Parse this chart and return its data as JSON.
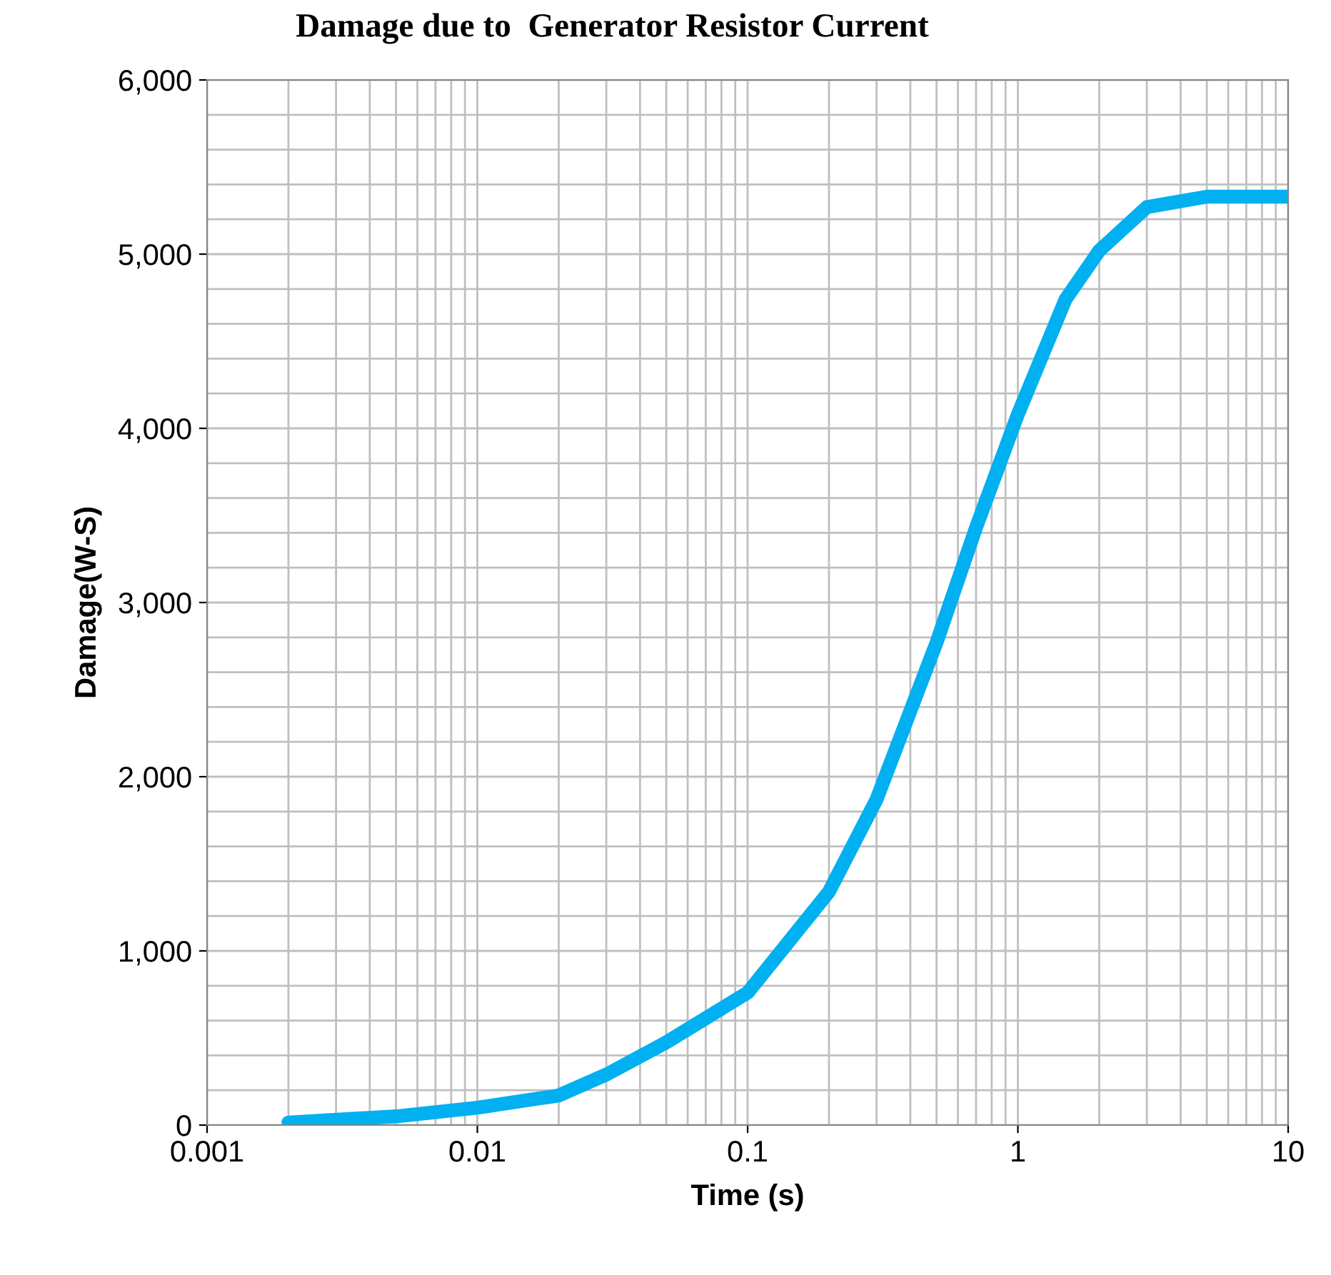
{
  "chart_data": {
    "type": "line",
    "title": "Damage due to  Generator Resistor Current",
    "xlabel": "Time (s)",
    "ylabel": "Damage(W-S)",
    "log": "x",
    "grid": true,
    "marker": "none",
    "line_style": "solid",
    "xlim": [
      0.001,
      10
    ],
    "xticks": [
      0.001,
      0.01,
      0.1,
      1,
      10
    ],
    "ylim": [
      0,
      6000
    ],
    "yticks": [
      0,
      {
        "value": 1000,
        "label": "1,000"
      },
      {
        "value": 2000,
        "label": "2,000"
      },
      {
        "value": 3000,
        "label": "3,000"
      },
      {
        "value": 4000,
        "label": "4,000"
      },
      {
        "value": 5000,
        "label": "5,000"
      },
      {
        "value": 6000,
        "label": "6,000"
      }
    ],
    "series": [
      {
        "color": "#00b0f0",
        "x": [
          0.002,
          0.005,
          0.01,
          0.02,
          0.03,
          0.05,
          0.1,
          0.2,
          0.3,
          0.5,
          0.7,
          1,
          1.5,
          2,
          3,
          5,
          10
        ],
        "values": [
          15,
          50,
          100,
          170,
          290,
          475,
          760,
          1340,
          1870,
          2770,
          3430,
          4080,
          4740,
          5020,
          5270,
          5330,
          5330
        ]
      }
    ]
  }
}
